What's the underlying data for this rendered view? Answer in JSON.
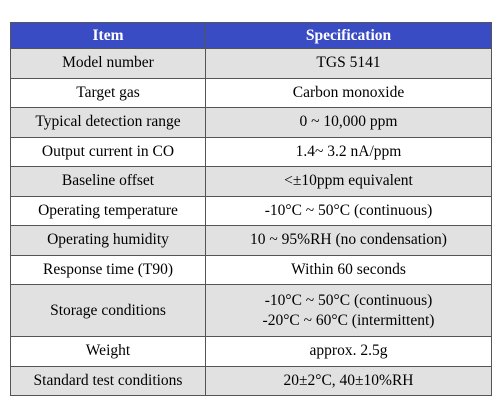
{
  "table": {
    "header": [
      "Item",
      "Specification"
    ],
    "rows": [
      [
        "Model number",
        "TGS 5141"
      ],
      [
        "Target gas",
        "Carbon monoxide"
      ],
      [
        "Typical detection range",
        "0 ~ 10,000 ppm"
      ],
      [
        "Output current in CO",
        "1.4~ 3.2 nA/ppm"
      ],
      [
        "Baseline offset",
        "<±10ppm equivalent"
      ],
      [
        "Operating temperature",
        "-10°C ~ 50°C (continuous)"
      ],
      [
        "Operating humidity",
        "10 ~ 95%RH (no condensation)"
      ],
      [
        "Response time (T90)",
        "Within 60 seconds"
      ],
      [
        "Storage conditions",
        [
          "-10°C ~ 50°C (continuous)",
          "-20°C ~ 60°C (intermittent)"
        ]
      ],
      [
        "Weight",
        "approx.  2.5g"
      ],
      [
        "Standard test conditions",
        "20±2°C,  40±10%RH"
      ]
    ]
  }
}
